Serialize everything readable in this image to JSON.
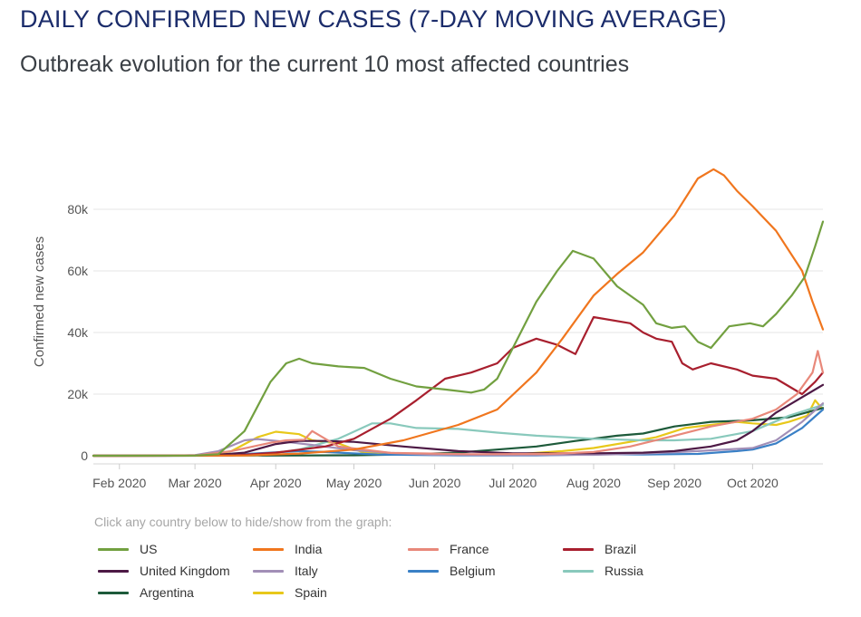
{
  "title": "DAILY CONFIRMED NEW CASES (7-DAY MOVING AVERAGE)",
  "subtitle": "Outbreak evolution for the current 10 most affected countries",
  "legend_hint": "Click any country below to hide/show from the graph:",
  "chart_data": {
    "type": "line",
    "ylabel": "Confirmed new cases",
    "ylim": [
      0,
      95000
    ],
    "y_ticks": [
      0,
      20000,
      40000,
      60000,
      80000
    ],
    "y_tick_labels": [
      "0",
      "20k",
      "40k",
      "60k",
      "80k"
    ],
    "x_range": [
      "2020-01-22",
      "2020-10-28"
    ],
    "x_ticks": [
      "2020-02-01",
      "2020-03-01",
      "2020-04-01",
      "2020-05-01",
      "2020-06-01",
      "2020-07-01",
      "2020-08-01",
      "2020-09-01",
      "2020-10-01"
    ],
    "x_tick_labels": [
      "Feb 2020",
      "Mar 2020",
      "Apr 2020",
      "May 2020",
      "Jun 2020",
      "Jul 2020",
      "Aug 2020",
      "Sep 2020",
      "Oct 2020"
    ],
    "grid": true,
    "legend_position": "bottom",
    "series": [
      {
        "name": "US",
        "color": "#72a040",
        "x": [
          "2020-01-22",
          "2020-03-01",
          "2020-03-10",
          "2020-03-20",
          "2020-03-30",
          "2020-04-05",
          "2020-04-10",
          "2020-04-15",
          "2020-04-25",
          "2020-05-05",
          "2020-05-15",
          "2020-05-25",
          "2020-06-05",
          "2020-06-15",
          "2020-06-20",
          "2020-06-25",
          "2020-07-01",
          "2020-07-10",
          "2020-07-18",
          "2020-07-24",
          "2020-08-01",
          "2020-08-10",
          "2020-08-20",
          "2020-08-25",
          "2020-08-31",
          "2020-09-05",
          "2020-09-10",
          "2020-09-15",
          "2020-09-22",
          "2020-09-30",
          "2020-10-05",
          "2020-10-10",
          "2020-10-16",
          "2020-10-21",
          "2020-10-25",
          "2020-10-28"
        ],
        "values": [
          0,
          50,
          500,
          8000,
          24000,
          30000,
          31500,
          30000,
          29000,
          28500,
          25000,
          22500,
          21500,
          20500,
          21500,
          25000,
          35000,
          50000,
          60000,
          66500,
          64000,
          55000,
          49000,
          43000,
          41500,
          42000,
          37000,
          35000,
          42000,
          43000,
          42000,
          46000,
          52000,
          58000,
          68000,
          76000
        ]
      },
      {
        "name": "India",
        "color": "#f0761e",
        "x": [
          "2020-01-22",
          "2020-03-20",
          "2020-04-10",
          "2020-05-01",
          "2020-05-20",
          "2020-06-10",
          "2020-06-25",
          "2020-07-10",
          "2020-07-20",
          "2020-08-01",
          "2020-08-10",
          "2020-08-20",
          "2020-09-01",
          "2020-09-10",
          "2020-09-16",
          "2020-09-20",
          "2020-09-25",
          "2020-10-01",
          "2020-10-10",
          "2020-10-20",
          "2020-10-24",
          "2020-10-28"
        ],
        "values": [
          0,
          50,
          700,
          2000,
          5000,
          10000,
          15000,
          27000,
          38000,
          52000,
          59000,
          66000,
          78000,
          90000,
          93000,
          91000,
          86000,
          81000,
          73000,
          60000,
          50000,
          41000
        ]
      },
      {
        "name": "France",
        "color": "#e8887a",
        "x": [
          "2020-01-22",
          "2020-03-01",
          "2020-03-15",
          "2020-03-30",
          "2020-04-05",
          "2020-04-12",
          "2020-04-15",
          "2020-04-25",
          "2020-05-15",
          "2020-06-15",
          "2020-07-15",
          "2020-08-01",
          "2020-08-15",
          "2020-09-01",
          "2020-09-15",
          "2020-10-01",
          "2020-10-10",
          "2020-10-18",
          "2020-10-24",
          "2020-10-26",
          "2020-10-28"
        ],
        "values": [
          0,
          20,
          1500,
          4200,
          5000,
          5200,
          8000,
          3000,
          900,
          500,
          600,
          1200,
          3000,
          6500,
          9500,
          12000,
          15000,
          20000,
          27000,
          34000,
          27000
        ]
      },
      {
        "name": "Brazil",
        "color": "#a81f2e",
        "x": [
          "2020-01-22",
          "2020-03-15",
          "2020-04-01",
          "2020-04-20",
          "2020-05-01",
          "2020-05-15",
          "2020-05-25",
          "2020-06-05",
          "2020-06-15",
          "2020-06-25",
          "2020-07-01",
          "2020-07-10",
          "2020-07-18",
          "2020-07-25",
          "2020-08-01",
          "2020-08-15",
          "2020-08-20",
          "2020-08-25",
          "2020-08-31",
          "2020-09-04",
          "2020-09-08",
          "2020-09-15",
          "2020-09-25",
          "2020-10-01",
          "2020-10-10",
          "2020-10-20",
          "2020-10-25",
          "2020-10-28"
        ],
        "values": [
          0,
          50,
          1000,
          3000,
          5500,
          12000,
          18000,
          25000,
          27000,
          30000,
          35000,
          38000,
          36000,
          33000,
          45000,
          43000,
          40000,
          38000,
          37000,
          30000,
          28000,
          30000,
          28000,
          26000,
          25000,
          20000,
          24000,
          27000
        ]
      },
      {
        "name": "United Kingdom",
        "color": "#4d1945",
        "x": [
          "2020-01-22",
          "2020-03-05",
          "2020-03-20",
          "2020-04-01",
          "2020-04-10",
          "2020-04-20",
          "2020-05-01",
          "2020-05-20",
          "2020-06-10",
          "2020-07-01",
          "2020-08-01",
          "2020-08-20",
          "2020-09-01",
          "2020-09-15",
          "2020-09-25",
          "2020-10-01",
          "2020-10-10",
          "2020-10-20",
          "2020-10-28"
        ],
        "values": [
          0,
          30,
          1000,
          3800,
          4800,
          4800,
          4500,
          3000,
          1500,
          800,
          800,
          1000,
          1500,
          3000,
          5000,
          8000,
          14000,
          19000,
          23000
        ]
      },
      {
        "name": "Italy",
        "color": "#a28fb7",
        "x": [
          "2020-01-22",
          "2020-02-20",
          "2020-03-01",
          "2020-03-10",
          "2020-03-20",
          "2020-03-25",
          "2020-04-05",
          "2020-04-15",
          "2020-05-01",
          "2020-05-15",
          "2020-06-01",
          "2020-07-01",
          "2020-08-01",
          "2020-08-20",
          "2020-09-10",
          "2020-10-01",
          "2020-10-10",
          "2020-10-20",
          "2020-10-28"
        ],
        "values": [
          0,
          10,
          200,
          1500,
          5000,
          5400,
          4500,
          3500,
          1800,
          900,
          300,
          200,
          300,
          700,
          1500,
          2500,
          5000,
          11000,
          17000
        ]
      },
      {
        "name": "Belgium",
        "color": "#3a80c6",
        "x": [
          "2020-01-22",
          "2020-03-10",
          "2020-03-25",
          "2020-04-10",
          "2020-04-20",
          "2020-05-10",
          "2020-06-10",
          "2020-07-10",
          "2020-08-05",
          "2020-08-20",
          "2020-09-10",
          "2020-09-25",
          "2020-10-01",
          "2020-10-10",
          "2020-10-20",
          "2020-10-28"
        ],
        "values": [
          0,
          20,
          800,
          1500,
          1200,
          400,
          100,
          100,
          500,
          400,
          600,
          1500,
          2000,
          4000,
          9000,
          15000
        ]
      },
      {
        "name": "Russia",
        "color": "#89c9bc",
        "x": [
          "2020-01-22",
          "2020-03-25",
          "2020-04-10",
          "2020-04-25",
          "2020-05-08",
          "2020-05-15",
          "2020-05-25",
          "2020-06-10",
          "2020-06-25",
          "2020-07-10",
          "2020-08-01",
          "2020-08-20",
          "2020-09-01",
          "2020-09-15",
          "2020-10-01",
          "2020-10-15",
          "2020-10-28"
        ],
        "values": [
          0,
          100,
          2000,
          5500,
          10500,
          10500,
          9000,
          8700,
          7500,
          6500,
          5500,
          5000,
          5000,
          5500,
          8000,
          13000,
          16500
        ]
      },
      {
        "name": "Argentina",
        "color": "#1d5a3a",
        "x": [
          "2020-01-22",
          "2020-04-01",
          "2020-05-01",
          "2020-05-20",
          "2020-06-10",
          "2020-06-25",
          "2020-07-10",
          "2020-07-25",
          "2020-08-10",
          "2020-08-20",
          "2020-09-01",
          "2020-09-15",
          "2020-10-01",
          "2020-10-15",
          "2020-10-28"
        ],
        "values": [
          0,
          50,
          150,
          400,
          1000,
          2000,
          3000,
          4800,
          6500,
          7200,
          9500,
          11000,
          11500,
          12500,
          15500
        ]
      },
      {
        "name": "Spain",
        "color": "#e8c81a",
        "x": [
          "2020-01-22",
          "2020-03-05",
          "2020-03-15",
          "2020-03-25",
          "2020-04-01",
          "2020-04-10",
          "2020-04-15",
          "2020-04-25",
          "2020-05-05",
          "2020-05-20",
          "2020-06-10",
          "2020-07-01",
          "2020-07-20",
          "2020-08-01",
          "2020-08-15",
          "2020-08-25",
          "2020-09-05",
          "2020-09-15",
          "2020-09-25",
          "2020-10-01",
          "2020-10-10",
          "2020-10-15",
          "2020-10-22",
          "2020-10-25",
          "2020-10-28"
        ],
        "values": [
          0,
          30,
          1500,
          6000,
          7800,
          7000,
          5000,
          4000,
          900,
          400,
          300,
          400,
          1500,
          2500,
          4500,
          6000,
          9000,
          10000,
          11000,
          10500,
          10000,
          11000,
          13000,
          18000,
          15000
        ]
      }
    ]
  }
}
